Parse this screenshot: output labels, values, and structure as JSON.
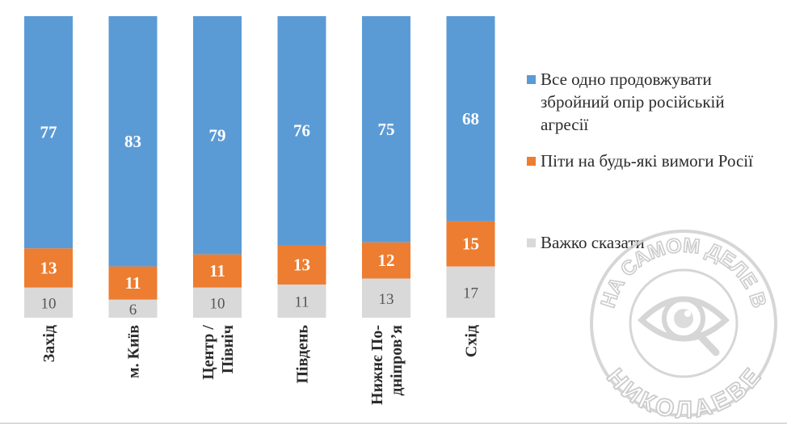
{
  "chart_data": {
    "type": "bar",
    "stacked": true,
    "orientation": "vertical",
    "categories": [
      "Захід",
      "м. Київ",
      "Центр / Північ",
      "Південь",
      "Нижнє По- дніпров’я",
      "Схід"
    ],
    "category_lines": [
      [
        "Захід"
      ],
      [
        "м. Київ"
      ],
      [
        "Центр /",
        "Північ"
      ],
      [
        "Південь"
      ],
      [
        "Нижнє По-",
        "дніпров’я"
      ],
      [
        "Схід"
      ]
    ],
    "series": [
      {
        "name": "Важко сказати",
        "values": [
          10,
          6,
          10,
          11,
          13,
          17
        ],
        "color": "#d9d9d9",
        "label_color": "#555555"
      },
      {
        "name": "Піти на будь-які вимоги Росії",
        "values": [
          13,
          11,
          11,
          13,
          12,
          15
        ],
        "color": "#ed7d31",
        "label_color": "#ffffff"
      },
      {
        "name": "Все одно продовжувати збройний опір російській агресії",
        "values": [
          77,
          83,
          79,
          76,
          75,
          68
        ],
        "color": "#5b9bd5",
        "label_color": "#ffffff"
      }
    ],
    "ylim": [
      0,
      100
    ],
    "grid": false,
    "legend_position": "right",
    "title": "",
    "xlabel": "",
    "ylabel": ""
  },
  "legend": {
    "items": [
      {
        "lines": [
          "Все одно продовжувати",
          "збройний опір російській",
          "агресії"
        ],
        "color": "#5b9bd5"
      },
      {
        "lines": [
          "Піти на будь-які вимоги Росії"
        ],
        "color": "#ed7d31"
      },
      {
        "lines": [
          "Важко сказати"
        ],
        "color": "#d9d9d9"
      }
    ]
  },
  "watermark": {
    "text_top": "НА САМОМ ДЕЛЕ В",
    "text_bottom": "НИКОЛАЕВЕ",
    "icon": "eye-magnifier-icon"
  }
}
